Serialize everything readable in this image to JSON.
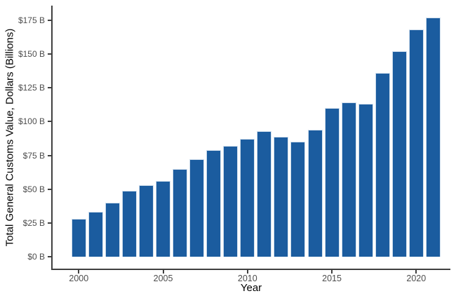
{
  "chart_data": {
    "type": "bar",
    "title": "",
    "xlabel": "Year",
    "ylabel": "Total General Customs Value, Dollars (Billions)",
    "categories": [
      2000,
      2001,
      2002,
      2003,
      2004,
      2005,
      2006,
      2007,
      2008,
      2009,
      2010,
      2011,
      2012,
      2013,
      2014,
      2015,
      2016,
      2017,
      2018,
      2019,
      2020,
      2021
    ],
    "values": [
      28,
      33,
      40,
      49,
      53,
      56,
      65,
      72,
      79,
      82,
      87,
      93,
      89,
      85,
      94,
      110,
      114,
      113,
      136,
      152,
      168,
      177
    ],
    "x_tick_labels": [
      "2000",
      "2005",
      "2010",
      "2015",
      "2020"
    ],
    "x_tick_years": [
      2000,
      2005,
      2010,
      2015,
      2020
    ],
    "y_tick_labels": [
      "$0 B",
      "$25 B",
      "$50 B",
      "$75 B",
      "$100 B",
      "$125 B",
      "$150 B",
      "$175 B"
    ],
    "y_tick_values": [
      0,
      25,
      50,
      75,
      100,
      125,
      150,
      175
    ],
    "ylim": [
      0,
      183
    ],
    "xlim": [
      1999.5,
      2021.5
    ],
    "grid": "off",
    "legend": "none",
    "bar_color": "#1b5c9f",
    "bar_border_color": "#cfdeed",
    "axis_line_color": "#404040",
    "tick_label_color": "#4d4d4d",
    "axis_title_color": "#000000",
    "background_color": "#ffffff"
  }
}
